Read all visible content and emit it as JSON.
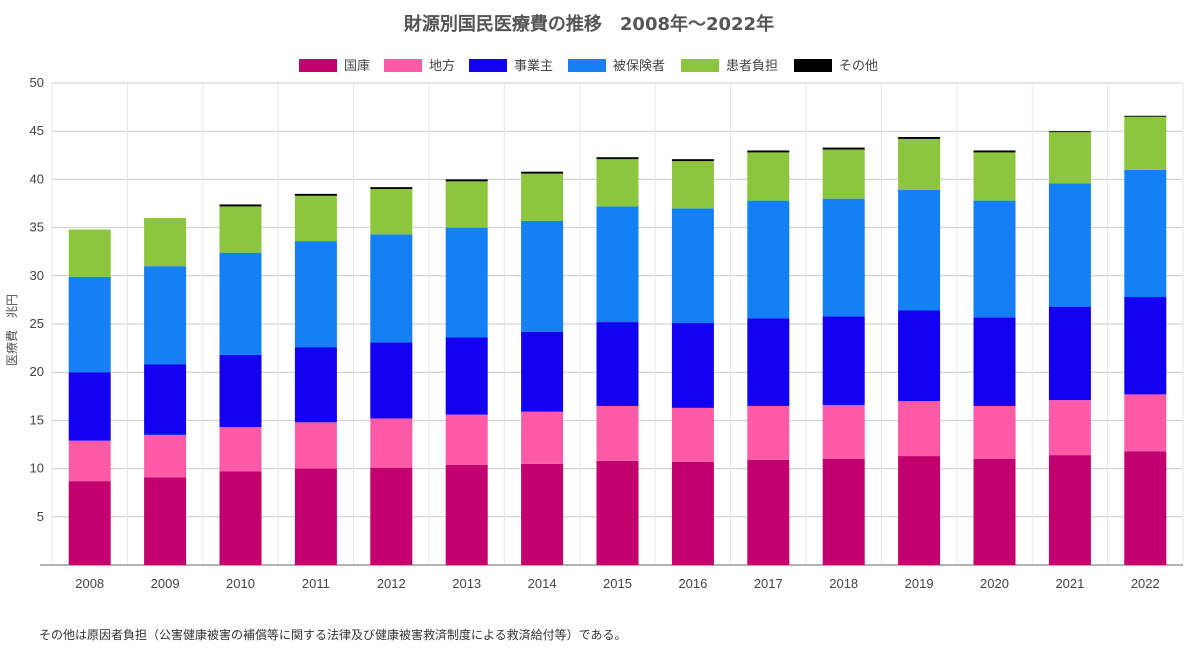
{
  "footnote": "その他は原因者負担（公害健康被害の補償等に関する法律及び健康被害救済制度による救済給付等）である。",
  "chart_data": {
    "type": "bar",
    "stacked": true,
    "title": "財源別国民医療費の推移　2008年〜2022年",
    "xlabel": "",
    "ylabel": "医療費　兆円",
    "ylim": [
      0,
      50
    ],
    "yticks": [
      5,
      10,
      15,
      20,
      25,
      30,
      35,
      40,
      45,
      50
    ],
    "grid": true,
    "legend_position": "top-center",
    "categories": [
      "2008",
      "2009",
      "2010",
      "2011",
      "2012",
      "2013",
      "2014",
      "2015",
      "2016",
      "2017",
      "2018",
      "2019",
      "2020",
      "2021",
      "2022"
    ],
    "series": [
      {
        "name": "国庫",
        "color": "#c2006e",
        "values": [
          8.7,
          9.1,
          9.7,
          10.0,
          10.1,
          10.4,
          10.5,
          10.8,
          10.7,
          10.9,
          11.0,
          11.3,
          11.0,
          11.4,
          11.8
        ]
      },
      {
        "name": "地方",
        "color": "#ff5aa8",
        "values": [
          4.2,
          4.4,
          4.6,
          4.8,
          5.1,
          5.2,
          5.4,
          5.7,
          5.6,
          5.6,
          5.6,
          5.7,
          5.5,
          5.7,
          5.9
        ]
      },
      {
        "name": "事業主",
        "color": "#1400f0",
        "values": [
          7.1,
          7.3,
          7.5,
          7.8,
          7.9,
          8.0,
          8.3,
          8.7,
          8.8,
          9.1,
          9.2,
          9.4,
          9.2,
          9.7,
          10.1
        ]
      },
      {
        "name": "被保険者",
        "color": "#1580f5",
        "values": [
          9.9,
          10.2,
          10.6,
          11.0,
          11.2,
          11.4,
          11.5,
          12.0,
          11.9,
          12.2,
          12.2,
          12.5,
          12.1,
          12.8,
          13.2
        ]
      },
      {
        "name": "患者負担",
        "color": "#8cc63c",
        "values": [
          4.9,
          5.0,
          4.8,
          4.7,
          4.7,
          4.8,
          4.9,
          4.9,
          4.9,
          5.0,
          5.1,
          5.3,
          5.0,
          5.3,
          5.5
        ]
      },
      {
        "name": "その他",
        "color": "#000000",
        "values": [
          0.0,
          0.0,
          0.2,
          0.2,
          0.2,
          0.2,
          0.2,
          0.2,
          0.2,
          0.2,
          0.2,
          0.2,
          0.2,
          0.1,
          0.1
        ]
      }
    ]
  }
}
